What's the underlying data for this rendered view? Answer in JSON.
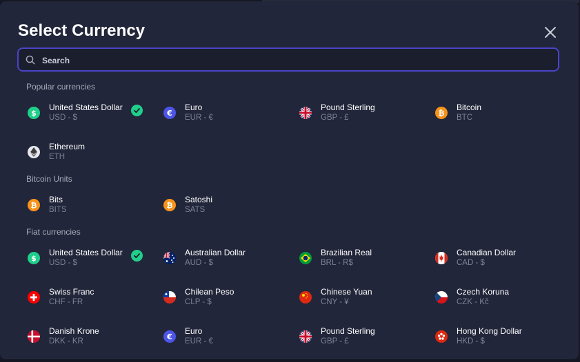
{
  "modal": {
    "title": "Select Currency",
    "close_icon": "close-icon"
  },
  "search": {
    "placeholder": "Search",
    "value": ""
  },
  "sections": {
    "popular": {
      "title": "Popular currencies",
      "items": [
        {
          "name": "United States Dollar",
          "code": "USD - $",
          "icon": "dollar-icon",
          "selected": true
        },
        {
          "name": "Euro",
          "code": "EUR - €",
          "icon": "euro-icon"
        },
        {
          "name": "Pound Sterling",
          "code": "GBP - £",
          "icon": "uk-flag-icon"
        },
        {
          "name": "Bitcoin",
          "code": "BTC",
          "icon": "bitcoin-icon"
        },
        {
          "name": "Ethereum",
          "code": "ETH",
          "icon": "ethereum-icon"
        }
      ]
    },
    "bitcoin_units": {
      "title": "Bitcoin Units",
      "items": [
        {
          "name": "Bits",
          "code": "BITS",
          "icon": "bitcoin-icon"
        },
        {
          "name": "Satoshi",
          "code": "SATS",
          "icon": "bitcoin-icon"
        }
      ]
    },
    "fiat": {
      "title": "Fiat currencies",
      "items": [
        {
          "name": "United States Dollar",
          "code": "USD - $",
          "icon": "dollar-icon",
          "selected": true
        },
        {
          "name": "Australian Dollar",
          "code": "AUD - $",
          "icon": "australia-flag-icon"
        },
        {
          "name": "Brazilian Real",
          "code": "BRL - R$",
          "icon": "brazil-flag-icon"
        },
        {
          "name": "Canadian Dollar",
          "code": "CAD - $",
          "icon": "canada-flag-icon"
        },
        {
          "name": "Swiss Franc",
          "code": "CHF - FR",
          "icon": "switzerland-flag-icon"
        },
        {
          "name": "Chilean Peso",
          "code": "CLP - $",
          "icon": "chile-flag-icon"
        },
        {
          "name": "Chinese Yuan",
          "code": "CNY - ¥",
          "icon": "china-flag-icon"
        },
        {
          "name": "Czech Koruna",
          "code": "CZK - Kč",
          "icon": "czech-flag-icon"
        },
        {
          "name": "Danish Krone",
          "code": "DKK - KR",
          "icon": "denmark-flag-icon"
        },
        {
          "name": "Euro",
          "code": "EUR - €",
          "icon": "euro-icon"
        },
        {
          "name": "Pound Sterling",
          "code": "GBP - £",
          "icon": "uk-flag-icon"
        },
        {
          "name": "Hong Kong Dollar",
          "code": "HKD - $",
          "icon": "hong-kong-flag-icon"
        }
      ]
    }
  },
  "colors": {
    "modal_bg": "#22263a",
    "accent": "#4a44c8",
    "check": "#1fcf8a",
    "bitcoin": "#f7931a",
    "euro": "#4d55e8"
  }
}
